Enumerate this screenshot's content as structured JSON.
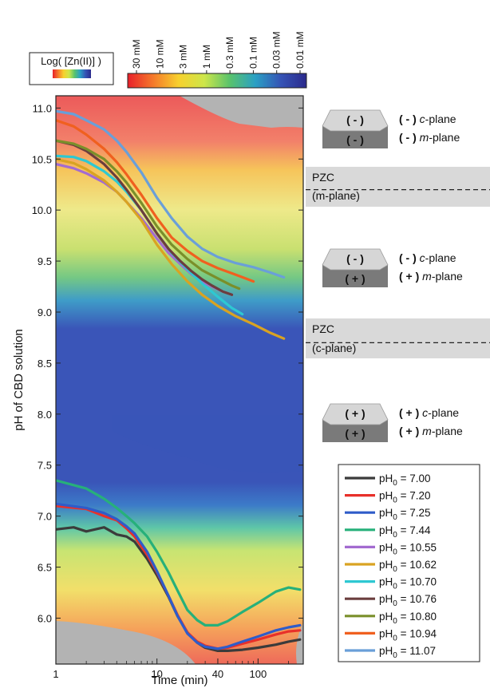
{
  "chart_data": {
    "type": "line",
    "xlabel": "Time (min)",
    "ylabel": "pH of CBD solution",
    "x_scale": "log",
    "xlim": [
      1,
      280
    ],
    "ylim": [
      5.55,
      11.12
    ],
    "x_ticks": [
      1,
      10,
      40,
      100
    ],
    "y_ticks": [
      6.0,
      6.5,
      7.0,
      7.5,
      8.0,
      8.5,
      9.0,
      9.5,
      10.0,
      10.5,
      11.0
    ],
    "colorbar": {
      "title": "Log( [Zn(II)] )",
      "labels": [
        "30 mM",
        "10 mM",
        "3 mM",
        "1 mM",
        "0.3 mM",
        "0.1 mM",
        "0.03 mM",
        "0.01 mM"
      ],
      "colors": [
        "#e8202a",
        "#f57a2a",
        "#f7d12e",
        "#cde64a",
        "#59c36c",
        "#2aa0c4",
        "#3553b5",
        "#2b2a8c"
      ]
    },
    "annotations": {
      "pzc_label": "PZC",
      "pzc_m_label": "(m-plane)",
      "pzc_c_label": "(c-plane)",
      "pzc_m_ph": 10.2,
      "pzc_c_ph": 8.7,
      "regions": [
        {
          "hex_top": "( - )",
          "hex_side": "( - )",
          "c_sign": "( - )",
          "c_text": "c-plane",
          "m_sign": "( - )",
          "m_text": "m-plane"
        },
        {
          "hex_top": "( - )",
          "hex_side": "( + )",
          "c_sign": "( - )",
          "c_text": "c-plane",
          "m_sign": "( + )",
          "m_text": "m-plane"
        },
        {
          "hex_top": "( + )",
          "hex_side": "( + )",
          "c_sign": "( + )",
          "c_text": "c-plane",
          "m_sign": "( + )",
          "m_text": "m-plane"
        }
      ]
    },
    "series": [
      {
        "name": "pH0 = 7.00",
        "color": "#3b3b3b",
        "x": [
          1,
          1.5,
          2,
          3,
          4,
          5,
          6,
          8,
          10,
          13,
          16,
          20,
          25,
          30,
          40,
          50,
          70,
          100,
          150,
          200,
          260
        ],
        "y": [
          6.87,
          6.89,
          6.85,
          6.89,
          6.82,
          6.8,
          6.75,
          6.58,
          6.42,
          6.21,
          6.02,
          5.86,
          5.76,
          5.71,
          5.68,
          5.68,
          5.69,
          5.71,
          5.74,
          5.77,
          5.79
        ]
      },
      {
        "name": "pH0 = 7.20",
        "color": "#e8302a",
        "x": [
          1,
          2,
          3,
          4,
          5,
          6,
          8,
          10,
          13,
          16,
          20,
          25,
          30,
          40,
          50,
          70,
          100,
          150,
          200,
          260
        ],
        "y": [
          7.1,
          7.07,
          7.0,
          6.96,
          6.88,
          6.8,
          6.62,
          6.45,
          6.22,
          6.03,
          5.86,
          5.77,
          5.73,
          5.7,
          5.71,
          5.75,
          5.79,
          5.84,
          5.87,
          5.88
        ]
      },
      {
        "name": "pH0 = 7.25",
        "color": "#2f5cc9",
        "x": [
          1,
          2,
          3,
          4,
          5,
          6,
          8,
          10,
          13,
          16,
          20,
          25,
          30,
          40,
          50,
          70,
          100,
          150,
          200,
          260
        ],
        "y": [
          7.12,
          7.08,
          7.03,
          6.97,
          6.9,
          6.83,
          6.65,
          6.46,
          6.22,
          6.02,
          5.85,
          5.76,
          5.72,
          5.7,
          5.72,
          5.77,
          5.82,
          5.88,
          5.91,
          5.93
        ]
      },
      {
        "name": "pH0 = 7.44",
        "color": "#27b07a",
        "x": [
          1,
          2,
          3,
          4,
          5,
          6,
          8,
          10,
          13,
          16,
          20,
          25,
          30,
          40,
          50,
          70,
          100,
          150,
          200,
          260
        ],
        "y": [
          7.35,
          7.27,
          7.17,
          7.08,
          7.0,
          6.93,
          6.8,
          6.65,
          6.45,
          6.27,
          6.08,
          5.98,
          5.93,
          5.93,
          5.97,
          6.06,
          6.15,
          6.26,
          6.3,
          6.28
        ]
      },
      {
        "name": "pH0 = 10.55",
        "color": "#a36bd0",
        "x": [
          1,
          1.5,
          2,
          3,
          4,
          5,
          7,
          10,
          13,
          17,
          22,
          28,
          35,
          45,
          55
        ],
        "y": [
          10.45,
          10.41,
          10.36,
          10.27,
          10.18,
          10.08,
          9.92,
          9.72,
          9.58,
          9.47,
          9.37,
          9.3,
          9.25,
          9.2,
          9.17
        ]
      },
      {
        "name": "pH0 = 10.62",
        "color": "#d9a322",
        "x": [
          1,
          1.5,
          2,
          3,
          4,
          5,
          7,
          10,
          14,
          20,
          28,
          40,
          60,
          90,
          130,
          180
        ],
        "y": [
          10.5,
          10.46,
          10.4,
          10.29,
          10.18,
          10.08,
          9.9,
          9.66,
          9.47,
          9.3,
          9.17,
          9.06,
          8.96,
          8.88,
          8.8,
          8.74
        ]
      },
      {
        "name": "pH0 = 10.70",
        "color": "#2ec8d2",
        "x": [
          1,
          1.5,
          2,
          3,
          4,
          5,
          7,
          10,
          14,
          20,
          28,
          40,
          55,
          70
        ],
        "y": [
          10.53,
          10.52,
          10.48,
          10.38,
          10.28,
          10.18,
          10.0,
          9.77,
          9.58,
          9.42,
          9.28,
          9.15,
          9.04,
          8.98
        ]
      },
      {
        "name": "pH0 = 10.76",
        "color": "#6b3e3e",
        "x": [
          1,
          1.5,
          2,
          3,
          4,
          5,
          7,
          10,
          13,
          17,
          22,
          28,
          35,
          45,
          55
        ],
        "y": [
          10.68,
          10.64,
          10.58,
          10.45,
          10.32,
          10.2,
          10.0,
          9.77,
          9.62,
          9.5,
          9.4,
          9.32,
          9.26,
          9.2,
          9.17
        ]
      },
      {
        "name": "pH0 = 10.80",
        "color": "#7a8f2a",
        "x": [
          1,
          1.5,
          2,
          3,
          4,
          5,
          7,
          10,
          14,
          20,
          28,
          40,
          55,
          65
        ],
        "y": [
          10.68,
          10.65,
          10.6,
          10.5,
          10.38,
          10.27,
          10.07,
          9.84,
          9.66,
          9.52,
          9.41,
          9.33,
          9.26,
          9.23
        ]
      },
      {
        "name": "pH0 = 10.94",
        "color": "#f0601f",
        "x": [
          1,
          1.5,
          2,
          3,
          4,
          5,
          7,
          10,
          14,
          20,
          28,
          40,
          55,
          75,
          90
        ],
        "y": [
          10.88,
          10.82,
          10.74,
          10.6,
          10.47,
          10.35,
          10.15,
          9.92,
          9.73,
          9.6,
          9.5,
          9.43,
          9.38,
          9.33,
          9.3
        ]
      },
      {
        "name": "pH0 = 11.07",
        "color": "#6a9fd8",
        "x": [
          1,
          1.5,
          2,
          3,
          4,
          5,
          7,
          10,
          14,
          20,
          28,
          40,
          60,
          90,
          130,
          180
        ],
        "y": [
          10.97,
          10.94,
          10.88,
          10.79,
          10.68,
          10.57,
          10.37,
          10.12,
          9.92,
          9.74,
          9.62,
          9.54,
          9.48,
          9.44,
          9.39,
          9.34
        ]
      }
    ]
  }
}
